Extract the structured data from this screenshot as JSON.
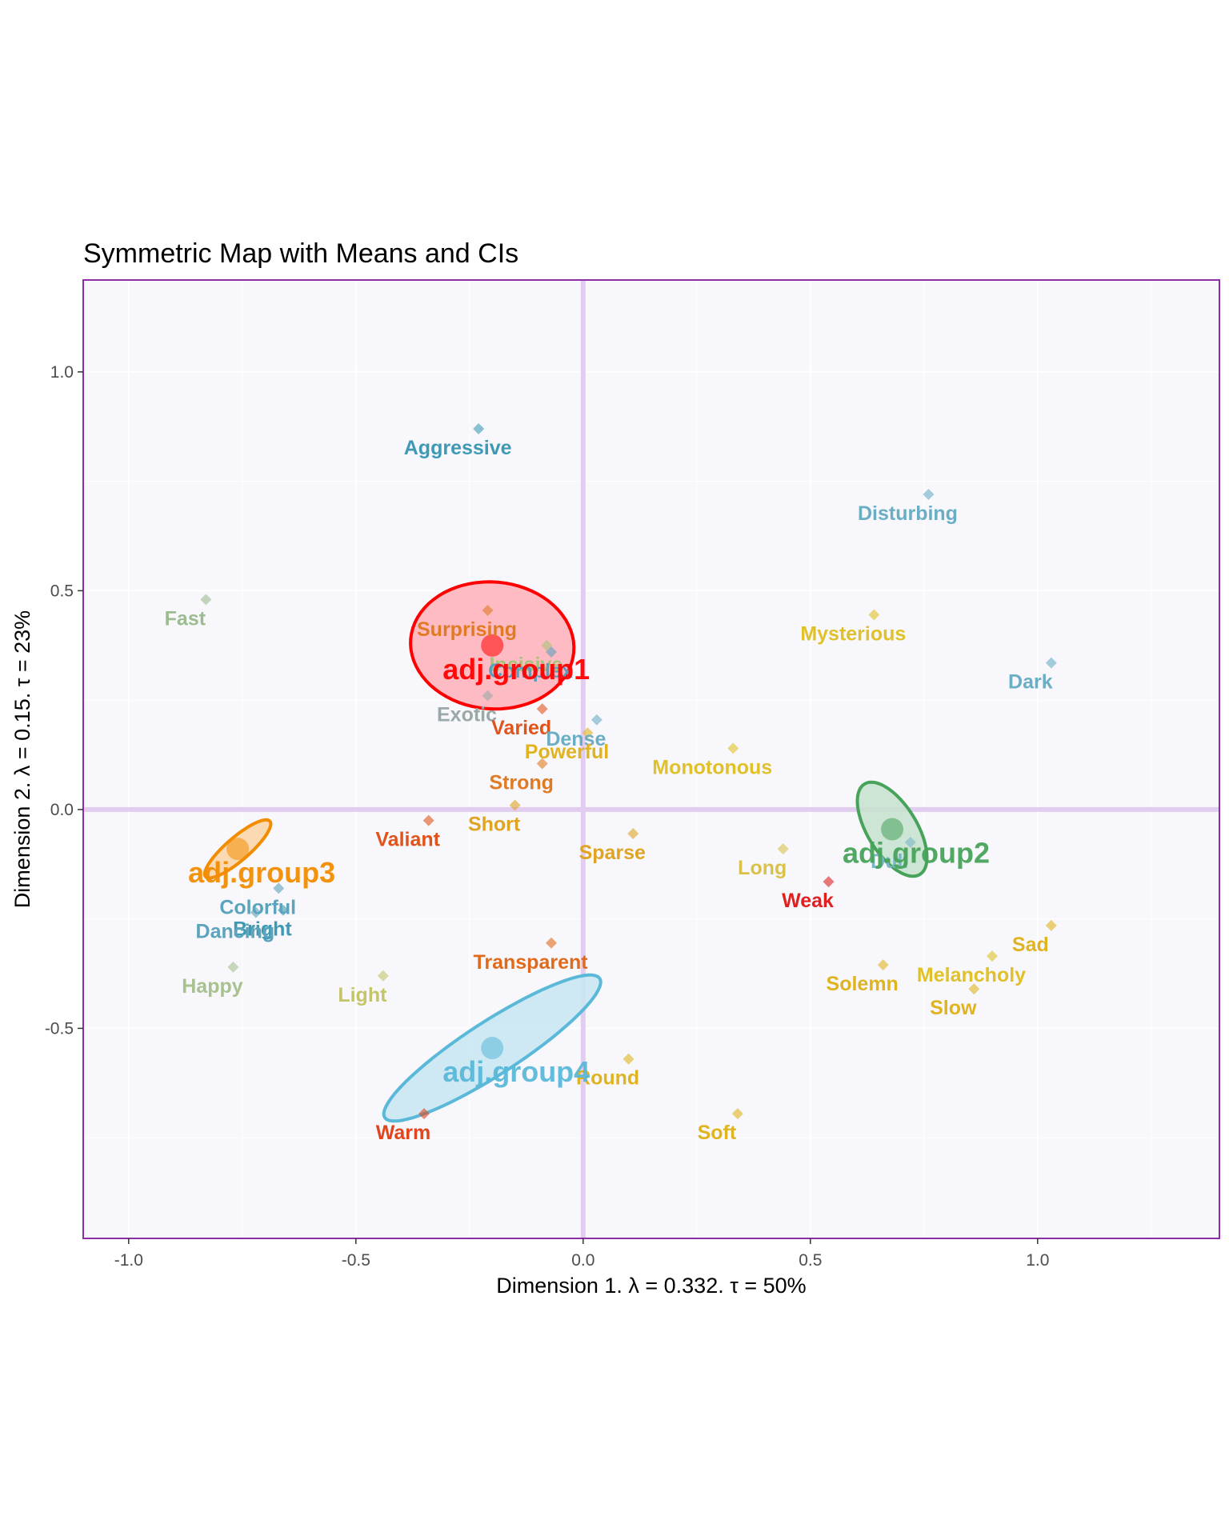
{
  "chart_data": {
    "type": "scatter",
    "title": "Symmetric Map with Means and CIs",
    "xlabel": "Dimension 1.   λ = 0.332.  τ = 50%",
    "ylabel": "Dimension 2.   λ = 0.15.  τ = 23%",
    "xlim": [
      -1.1,
      1.4
    ],
    "ylim": [
      -0.98,
      1.21
    ],
    "x_ticks": [
      "-1.0",
      "-0.5",
      "0.0",
      "0.5",
      "1.0"
    ],
    "y_ticks": [
      "-0.5",
      "0.0",
      "0.5",
      "1.0"
    ],
    "x_tick_values": [
      -1.0,
      -0.5,
      0.0,
      0.5,
      1.0
    ],
    "y_tick_values": [
      -0.5,
      0.0,
      0.5,
      1.0
    ],
    "grid": true,
    "colors": {
      "panel_bg": "#f8f7fc",
      "panel_border": "#8b2fa7",
      "zero_line": "#e2cdf0"
    },
    "points": [
      {
        "label": "Aggressive",
        "x": -0.23,
        "y": 0.87,
        "color": "#3e9ab4"
      },
      {
        "label": "Disturbing",
        "x": 0.76,
        "y": 0.72,
        "color": "#6aaec4"
      },
      {
        "label": "Fast",
        "x": -0.83,
        "y": 0.48,
        "color": "#9cbc8f"
      },
      {
        "label": "Surprising",
        "x": -0.21,
        "y": 0.455,
        "color": "#e07b23"
      },
      {
        "label": "Incisive",
        "x": -0.08,
        "y": 0.375,
        "color": "#a8c27a"
      },
      {
        "label": "Mysterious",
        "x": 0.64,
        "y": 0.445,
        "color": "#e0c12a"
      },
      {
        "label": "Complex",
        "x": -0.07,
        "y": 0.36,
        "color": "#5b9fbd"
      },
      {
        "label": "Dark",
        "x": 1.03,
        "y": 0.335,
        "color": "#6aaec4"
      },
      {
        "label": "Exotic",
        "x": -0.21,
        "y": 0.26,
        "color": "#9aa8a8"
      },
      {
        "label": "Varied",
        "x": -0.09,
        "y": 0.23,
        "color": "#e0541c"
      },
      {
        "label": "Dense",
        "x": 0.03,
        "y": 0.205,
        "color": "#6aaec4"
      },
      {
        "label": "Powerful",
        "x": 0.01,
        "y": 0.175,
        "color": "#e0b420"
      },
      {
        "label": "Monotonous",
        "x": 0.33,
        "y": 0.14,
        "color": "#e0c12a"
      },
      {
        "label": "Strong",
        "x": -0.09,
        "y": 0.105,
        "color": "#e07b23"
      },
      {
        "label": "Short",
        "x": -0.15,
        "y": 0.01,
        "color": "#e0a423"
      },
      {
        "label": "Valiant",
        "x": -0.34,
        "y": -0.025,
        "color": "#e0541c"
      },
      {
        "label": "Sparse",
        "x": 0.11,
        "y": -0.055,
        "color": "#e0a423"
      },
      {
        "label": "Long",
        "x": 0.44,
        "y": -0.09,
        "color": "#d8c24a"
      },
      {
        "label": "Dull",
        "x": 0.72,
        "y": -0.075,
        "color": "#7ab6c8"
      },
      {
        "label": "Weak",
        "x": 0.54,
        "y": -0.165,
        "color": "#e02020"
      },
      {
        "label": "Colorful",
        "x": -0.67,
        "y": -0.18,
        "color": "#5ba4bb"
      },
      {
        "label": "Bright",
        "x": -0.66,
        "y": -0.23,
        "color": "#3e9ab4"
      },
      {
        "label": "Dancing",
        "x": -0.72,
        "y": -0.235,
        "color": "#5ba4bb"
      },
      {
        "label": "Sad",
        "x": 1.03,
        "y": -0.265,
        "color": "#e0b420"
      },
      {
        "label": "Transparent",
        "x": -0.07,
        "y": -0.305,
        "color": "#e06a1c"
      },
      {
        "label": "Melancholy",
        "x": 0.9,
        "y": -0.335,
        "color": "#e0c12a"
      },
      {
        "label": "Solemn",
        "x": 0.66,
        "y": -0.355,
        "color": "#e0b420"
      },
      {
        "label": "Happy",
        "x": -0.77,
        "y": -0.36,
        "color": "#a7c28e"
      },
      {
        "label": "Light",
        "x": -0.44,
        "y": -0.38,
        "color": "#c4c46a"
      },
      {
        "label": "Slow",
        "x": 0.86,
        "y": -0.41,
        "color": "#e0b420"
      },
      {
        "label": "Round",
        "x": 0.1,
        "y": -0.57,
        "color": "#e0b420"
      },
      {
        "label": "Warm",
        "x": -0.35,
        "y": -0.695,
        "color": "#e0451c"
      },
      {
        "label": "Soft",
        "x": 0.34,
        "y": -0.695,
        "color": "#e0b420"
      }
    ],
    "groups": [
      {
        "label": "adj.group1",
        "x": -0.2,
        "y": 0.375,
        "color": "#ff0000",
        "fill": "#ffb0b8",
        "ellipse": {
          "rx": 0.145,
          "ry": 0.18,
          "angle_deg": -95
        }
      },
      {
        "label": "adj.group2",
        "x": 0.68,
        "y": -0.045,
        "color": "#47a35a",
        "fill": "#c6e2cc",
        "ellipse": {
          "rx": 0.12,
          "ry": 0.055,
          "angle_deg": -60
        }
      },
      {
        "label": "adj.group3",
        "x": -0.76,
        "y": -0.09,
        "color": "#f28c00",
        "fill": "#fcd4a6",
        "ellipse": {
          "rx": 0.095,
          "ry": 0.026,
          "angle_deg": 42
        }
      },
      {
        "label": "adj.group4",
        "x": -0.2,
        "y": -0.545,
        "color": "#5ab8d8",
        "fill": "#c8e6f2",
        "ellipse": {
          "rx": 0.285,
          "ry": 0.06,
          "angle_deg": 34
        }
      }
    ]
  }
}
